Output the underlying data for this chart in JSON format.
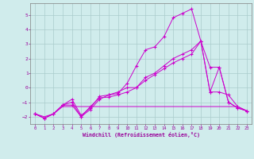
{
  "background_color": "#d0ecec",
  "grid_color": "#aacccc",
  "line_color": "#cc00cc",
  "marker_color": "#cc00cc",
  "xlabel": "Windchill (Refroidissement éolien,°C)",
  "xlabel_color": "#990099",
  "ylabel_color": "#990099",
  "xlim": [
    -0.5,
    23.5
  ],
  "ylim": [
    -2.5,
    5.8
  ],
  "yticks": [
    -2,
    -1,
    0,
    1,
    2,
    3,
    4,
    5
  ],
  "xticks": [
    0,
    1,
    2,
    3,
    4,
    5,
    6,
    7,
    8,
    9,
    10,
    11,
    12,
    13,
    14,
    15,
    16,
    17,
    18,
    19,
    20,
    21,
    22,
    23
  ],
  "series1_x": [
    0,
    1,
    2,
    3,
    4,
    5,
    6,
    7,
    8,
    9,
    10,
    11,
    12,
    13,
    14,
    15,
    16,
    17,
    18,
    19,
    20,
    21,
    22,
    23
  ],
  "series1_y": [
    -1.8,
    -2.1,
    -1.8,
    -1.2,
    -0.8,
    -1.9,
    -1.4,
    -0.6,
    -0.5,
    -0.4,
    0.3,
    1.5,
    2.6,
    2.8,
    3.5,
    4.8,
    5.1,
    5.4,
    3.2,
    -0.3,
    1.4,
    -1.0,
    -1.4,
    -1.6
  ],
  "series2_x": [
    0,
    1,
    2,
    3,
    4,
    5,
    6,
    7,
    8,
    9,
    10,
    11,
    12,
    13,
    14,
    15,
    16,
    17,
    18,
    19,
    20,
    21,
    22,
    23
  ],
  "series2_y": [
    -1.8,
    -2.1,
    -1.8,
    -1.2,
    -1.2,
    -2.0,
    -1.3,
    -0.7,
    -0.65,
    -0.5,
    -0.3,
    0.0,
    0.5,
    0.9,
    1.3,
    1.7,
    2.0,
    2.3,
    3.2,
    -0.3,
    -0.3,
    -0.5,
    -1.3,
    -1.6
  ],
  "series3_x": [
    0,
    1,
    2,
    3,
    4,
    5,
    6,
    7,
    8,
    9,
    10,
    11,
    12,
    13,
    14,
    15,
    16,
    17,
    18,
    19,
    20,
    21,
    22,
    23
  ],
  "series3_y": [
    -1.8,
    -2.0,
    -1.8,
    -1.3,
    -1.3,
    -1.3,
    -1.3,
    -1.3,
    -1.3,
    -1.3,
    -1.3,
    -1.3,
    -1.3,
    -1.3,
    -1.3,
    -1.3,
    -1.3,
    -1.3,
    -1.3,
    -1.3,
    -1.3,
    -1.3,
    -1.3,
    -1.6
  ],
  "series4_x": [
    0,
    1,
    2,
    3,
    4,
    5,
    6,
    7,
    8,
    9,
    10,
    11,
    12,
    13,
    14,
    15,
    16,
    17,
    18,
    19,
    20,
    21,
    22,
    23
  ],
  "series4_y": [
    -1.8,
    -2.1,
    -1.8,
    -1.2,
    -1.0,
    -2.0,
    -1.5,
    -0.8,
    -0.5,
    -0.3,
    0.0,
    0.0,
    0.7,
    1.0,
    1.5,
    2.0,
    2.3,
    2.6,
    3.2,
    1.4,
    1.4,
    -1.0,
    -1.4,
    -1.6
  ],
  "figsize": [
    3.2,
    2.0
  ],
  "dpi": 100
}
